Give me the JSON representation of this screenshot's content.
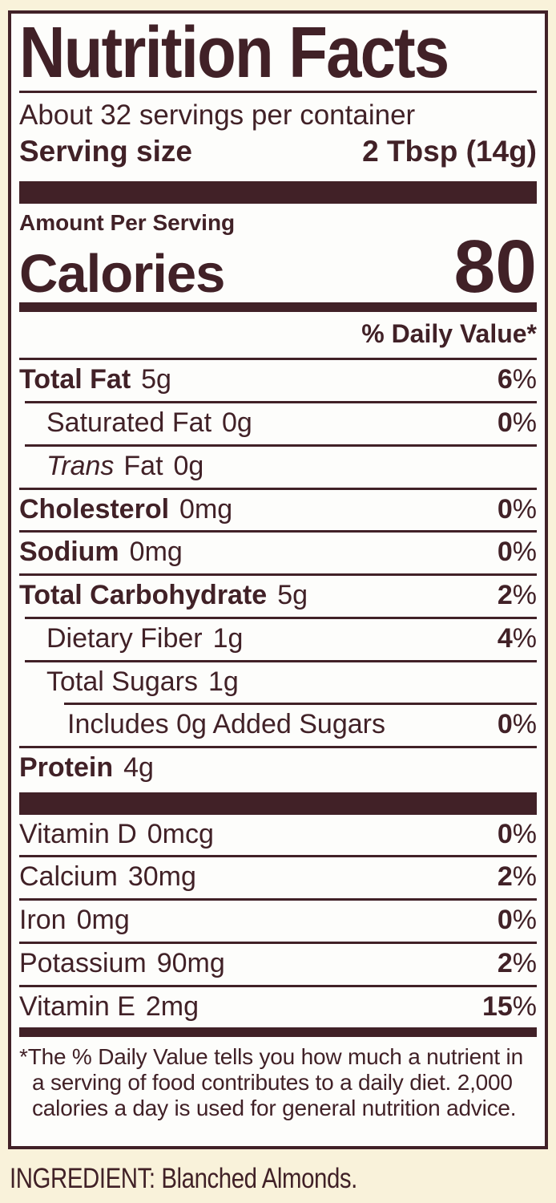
{
  "colors": {
    "ink": "#412127",
    "background_cream": "#f9f2da",
    "panel_background": "#fdfdfb"
  },
  "label": {
    "title": "Nutrition Facts",
    "servings_per_container": "About 32 servings per container",
    "serving_size_label": "Serving size",
    "serving_size_value": "2 Tbsp (14g)",
    "amount_per_serving": "Amount Per Serving",
    "calories_label": "Calories",
    "calories_value": "80",
    "daily_value_header": "% Daily Value*",
    "percent_sign": "%",
    "nutrients": [
      {
        "name": "Total Fat",
        "amount": "5g",
        "dv": "6"
      },
      {
        "name": "Saturated Fat",
        "amount": "0g",
        "dv": "0"
      },
      {
        "name_italic": "Trans",
        "name_rest": "Fat",
        "amount": "0g",
        "dv": ""
      },
      {
        "name": "Cholesterol",
        "amount": "0mg",
        "dv": "0"
      },
      {
        "name": "Sodium",
        "amount": "0mg",
        "dv": "0"
      },
      {
        "name": "Total Carbohydrate",
        "amount": "5g",
        "dv": "2"
      },
      {
        "name": "Dietary Fiber",
        "amount": "1g",
        "dv": "4"
      },
      {
        "name": "Total Sugars",
        "amount": "1g",
        "dv": ""
      },
      {
        "name": "Includes 0g Added Sugars",
        "amount": "",
        "dv": "0"
      },
      {
        "name": "Protein",
        "amount": "4g",
        "dv": ""
      }
    ],
    "vitamins": [
      {
        "name": "Vitamin D",
        "amount": "0mcg",
        "dv": "0"
      },
      {
        "name": "Calcium",
        "amount": "30mg",
        "dv": "2"
      },
      {
        "name": "Iron",
        "amount": "0mg",
        "dv": "0"
      },
      {
        "name": "Potassium",
        "amount": "90mg",
        "dv": "2"
      },
      {
        "name": "Vitamin E",
        "amount": "2mg",
        "dv": "15"
      }
    ],
    "footnote_asterisk": "*",
    "footnote": "The % Daily Value tells you how much a nutrient in a serving of food contributes to a daily diet. 2,000 calories a day is used for general nutrition advice."
  },
  "ingredient_line": "INGREDIENT: Blanched Almonds."
}
